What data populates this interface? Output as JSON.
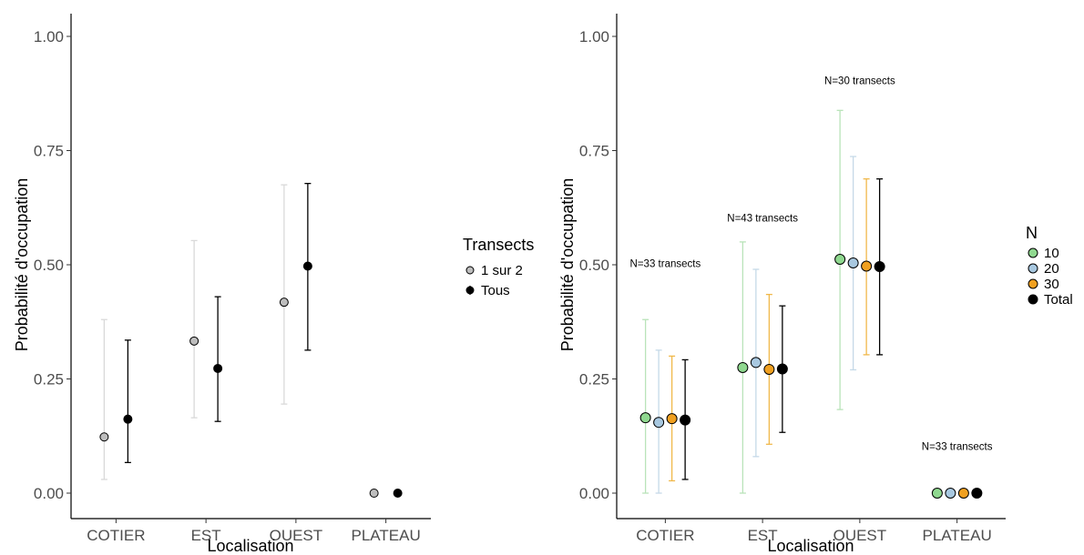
{
  "chart_data": [
    {
      "type": "scatter",
      "subtype": "point-range",
      "title": "",
      "xlabel": "Localisation",
      "ylabel": "Probabilité d'occupation",
      "categories": [
        "COTIER",
        "EST",
        "OUEST",
        "PLATEAU"
      ],
      "ylim": [
        0,
        1
      ],
      "yticks": [
        "0.00",
        "0.25",
        "0.50",
        "0.75",
        "1.00"
      ],
      "grid": false,
      "legend": {
        "title": "Transects",
        "position": "right"
      },
      "series": [
        {
          "name": "1 sur 2",
          "color": "#bdbdbd",
          "error_color": "#d9d9d9",
          "values": [
            0.123,
            0.333,
            0.418,
            0.0
          ],
          "lower": [
            0.03,
            0.165,
            0.195,
            0.0
          ],
          "upper": [
            0.38,
            0.553,
            0.675,
            0.0
          ]
        },
        {
          "name": "Tous",
          "color": "#000000",
          "error_color": "#000000",
          "values": [
            0.162,
            0.273,
            0.497,
            0.0
          ],
          "lower": [
            0.067,
            0.157,
            0.313,
            0.0
          ],
          "upper": [
            0.335,
            0.43,
            0.678,
            0.0
          ]
        }
      ],
      "annotations": []
    },
    {
      "type": "scatter",
      "subtype": "point-range",
      "title": "",
      "xlabel": "Localisation",
      "ylabel": "Probabilité d'occupation",
      "categories": [
        "COTIER",
        "EST",
        "OUEST",
        "PLATEAU"
      ],
      "ylim": [
        0,
        1
      ],
      "yticks": [
        "0.00",
        "0.25",
        "0.50",
        "0.75",
        "1.00"
      ],
      "grid": false,
      "legend": {
        "title": "N",
        "position": "right"
      },
      "series": [
        {
          "name": "10",
          "color": "#8fd88f",
          "error_color": "#b9e3b9",
          "values": [
            0.165,
            0.275,
            0.512,
            0.0
          ],
          "lower": [
            0.0,
            0.0,
            0.183,
            0.0
          ],
          "upper": [
            0.38,
            0.55,
            0.838,
            0.0
          ]
        },
        {
          "name": "20",
          "color": "#a8c8e0",
          "error_color": "#c5d9e8",
          "values": [
            0.155,
            0.286,
            0.504,
            0.0
          ],
          "lower": [
            0.0,
            0.08,
            0.27,
            0.0
          ],
          "upper": [
            0.313,
            0.49,
            0.737,
            0.0
          ]
        },
        {
          "name": "30",
          "color": "#f0a020",
          "error_color": "#f0b84a",
          "values": [
            0.163,
            0.271,
            0.497,
            0.0
          ],
          "lower": [
            0.027,
            0.107,
            0.303,
            0.0
          ],
          "upper": [
            0.3,
            0.435,
            0.688,
            0.0
          ]
        },
        {
          "name": "Total",
          "color": "#000000",
          "error_color": "#000000",
          "values": [
            0.16,
            0.272,
            0.496,
            0.0
          ],
          "lower": [
            0.03,
            0.133,
            0.303,
            0.0
          ],
          "upper": [
            0.292,
            0.41,
            0.688,
            0.0
          ]
        }
      ],
      "annotations": [
        {
          "category": "COTIER",
          "y": 0.495,
          "text": "N=33 transects"
        },
        {
          "category": "EST",
          "y": 0.595,
          "text": "N=43 transects"
        },
        {
          "category": "OUEST",
          "y": 0.895,
          "text": "N=30 transects"
        },
        {
          "category": "PLATEAU",
          "y": 0.095,
          "text": "N=33 transects"
        }
      ]
    }
  ]
}
